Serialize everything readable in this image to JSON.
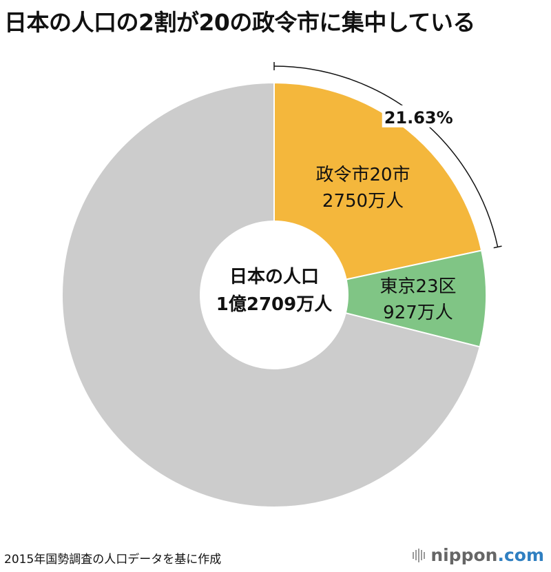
{
  "title": "日本の人口の2割が20の政令市に集中している",
  "chart_data": {
    "type": "pie",
    "center_label": [
      "日本の人口",
      "1億2709万人"
    ],
    "total": 12709,
    "unit": "万人",
    "slices": [
      {
        "id": "seirei",
        "label": "政令市20市",
        "value": 2750,
        "value_label": "2750万人",
        "color": "#F4B73C"
      },
      {
        "id": "tokyo23",
        "label": "東京23区",
        "value": 927,
        "value_label": "927万人",
        "color": "#80C585"
      },
      {
        "id": "other",
        "label": "",
        "value": 9032,
        "value_label": "",
        "color": "#CCCCCC"
      }
    ],
    "annotation": {
      "label": "21.63%",
      "value": 21.63,
      "spans_slice": "seirei"
    }
  },
  "source": "2015年国勢調査の人口データを基に作成",
  "brand": {
    "prefix": "nippon",
    "suffix": ".com",
    "prefix_color": "#666666",
    "suffix_color": "#2f7fc1"
  }
}
